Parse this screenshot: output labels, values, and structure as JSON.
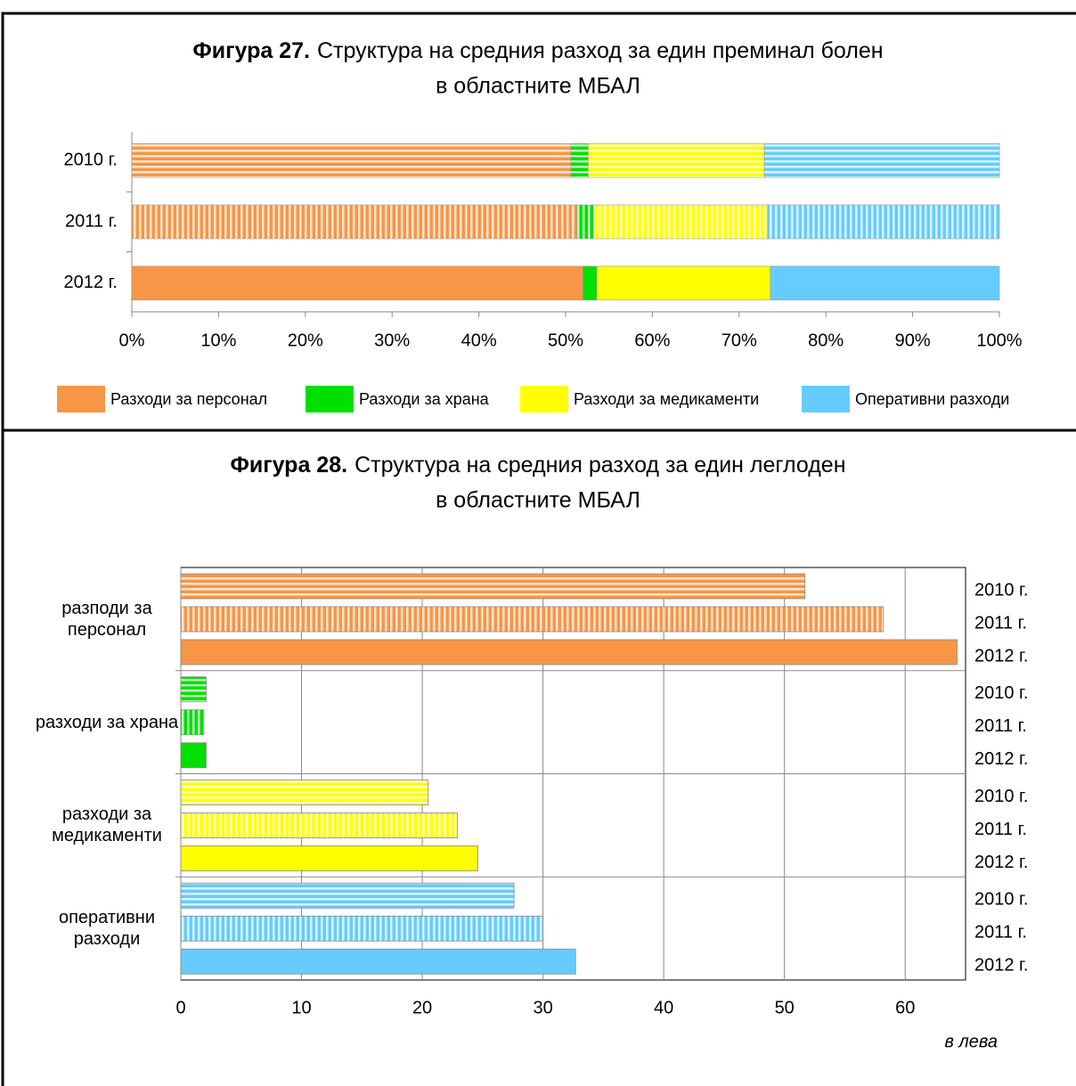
{
  "chart_data": [
    {
      "type": "stacked_bar_h",
      "figure_label": "Фигура 27.",
      "title": [
        "Структура на средния разход за един преминал болен",
        "в областните МБАЛ"
      ],
      "categories": [
        "2010 г.",
        "2011 г.",
        "2012 г."
      ],
      "series": [
        {
          "name": "Разходи за персонал",
          "color": "#f79646",
          "values": [
            50.6,
            51.3,
            52.0
          ]
        },
        {
          "name": "Разходи за храна",
          "color": "#00e000",
          "values": [
            2.0,
            1.9,
            1.6
          ]
        },
        {
          "name": "Разходи за медикаменти",
          "color": "#ffff00",
          "values": [
            20.3,
            20.1,
            20.0
          ]
        },
        {
          "name": "Оперативни разходи",
          "color": "#66ccff",
          "values": [
            27.1,
            26.7,
            26.4
          ]
        }
      ],
      "xlim": [
        0,
        100
      ],
      "xticks": [
        {
          "value": 0,
          "label": "0%"
        },
        {
          "value": 10,
          "label": "10%"
        },
        {
          "value": 20,
          "label": "20%"
        },
        {
          "value": 30,
          "label": "30%"
        },
        {
          "value": 40,
          "label": "40%"
        },
        {
          "value": 50,
          "label": "50%"
        },
        {
          "value": 60,
          "label": "60%"
        },
        {
          "value": 70,
          "label": "70%"
        },
        {
          "value": 80,
          "label": "80%"
        },
        {
          "value": 90,
          "label": "90%"
        },
        {
          "value": 100,
          "label": "100%"
        }
      ],
      "legend": "bottom"
    },
    {
      "type": "grouped_bar_h",
      "figure_label": "Фигура 28.",
      "title": [
        "Структура на средния разход за един леглоден",
        "в областните МБАЛ"
      ],
      "categories": [
        "разподи за персонал",
        "разходи за храна",
        "разходи за медикаменти",
        "оперативни разходи"
      ],
      "category_colors": [
        "#f79646",
        "#00e000",
        "#ffff00",
        "#66ccff"
      ],
      "series": [
        {
          "name": "2010 г.",
          "values": [
            51.7,
            2.1,
            20.5,
            27.6
          ]
        },
        {
          "name": "2011 г.",
          "values": [
            58.2,
            1.9,
            22.9,
            30.0
          ]
        },
        {
          "name": "2012 г.",
          "values": [
            64.3,
            2.1,
            24.6,
            32.7
          ]
        }
      ],
      "xlim": [
        0,
        65
      ],
      "xticks": [
        0,
        10,
        20,
        30,
        40,
        50,
        60
      ],
      "grid": true,
      "x_label": "в лева"
    }
  ]
}
